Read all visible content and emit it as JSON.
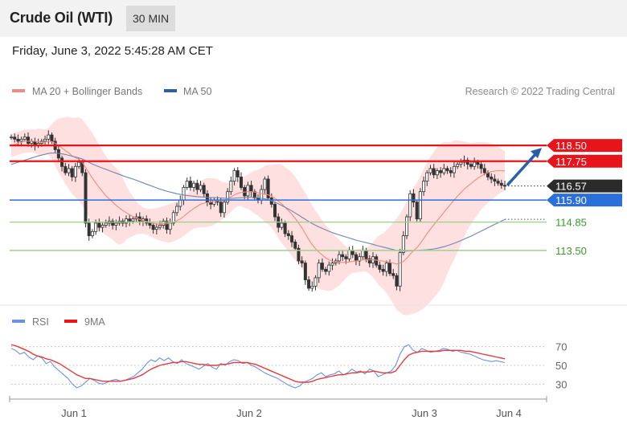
{
  "header": {
    "title": "Crude Oil (WTI)",
    "interval": "30 MIN"
  },
  "timestamp": "Friday, June 3, 2022 5:45:28 AM CET",
  "legend": {
    "ma20_label": "MA 20 + Bollinger Bands",
    "ma50_label": "MA 50",
    "copyright": "Research © 2022 Trading Central",
    "rsi_label": "RSI",
    "rsi_ma_label": "9MA"
  },
  "colors": {
    "resistance": "#e8141c",
    "support_blue": "#2a6fdb",
    "support_green": "#9fd08f",
    "ma20": "#f08b80",
    "ma50": "#6f86b0",
    "bollinger": "#ffd6d6",
    "candle": "#333333",
    "arrow": "#2a5fa8",
    "rsi": "#6a93e0",
    "rsi_ma": "#e83a3a"
  },
  "chart_data": [
    {
      "type": "candlestick",
      "x_ticks": [
        "Jun 1",
        "Jun 2",
        "Jun 3",
        "Jun 4"
      ],
      "levels": [
        {
          "name": "resistance",
          "value": 118.5,
          "label": "118.50"
        },
        {
          "name": "resistance",
          "value": 117.75,
          "label": "117.75"
        },
        {
          "name": "pivot",
          "value": 115.9,
          "label": "115.90"
        },
        {
          "name": "support",
          "value": 114.85,
          "label": "114.85"
        },
        {
          "name": "support",
          "value": 113.5,
          "label": "113.50"
        }
      ],
      "last_price": {
        "value": 116.57,
        "label": "116.57"
      },
      "ylim": [
        111.2,
        119.5
      ],
      "close": [
        118.9,
        118.8,
        118.7,
        118.8,
        118.9,
        118.6,
        118.7,
        118.5,
        118.6,
        118.7,
        118.8,
        119.0,
        118.7,
        118.3,
        117.9,
        117.5,
        117.2,
        117.4,
        117.0,
        117.5,
        117.7,
        117.2,
        114.8,
        114.2,
        114.4,
        114.8,
        114.6,
        114.7,
        114.8,
        114.9,
        114.7,
        114.8,
        114.9,
        114.8,
        115.0,
        114.9,
        115.0,
        115.1,
        114.9,
        115.0,
        114.8,
        114.7,
        114.5,
        114.6,
        114.7,
        114.9,
        114.5,
        114.8,
        115.3,
        115.6,
        115.9,
        116.5,
        116.8,
        116.5,
        116.7,
        116.4,
        116.6,
        116.2,
        115.8,
        115.7,
        115.9,
        115.8,
        115.3,
        115.8,
        116.3,
        116.8,
        117.3,
        117.0,
        116.5,
        116.1,
        116.6,
        116.3,
        116.0,
        115.9,
        116.4,
        116.9,
        116.0,
        115.7,
        115.1,
        114.6,
        114.8,
        114.3,
        114.2,
        113.9,
        113.6,
        113.0,
        112.9,
        112.1,
        111.7,
        111.8,
        112.2,
        112.9,
        112.6,
        112.5,
        112.8,
        112.9,
        113.0,
        113.3,
        113.2,
        113.1,
        113.5,
        113.3,
        113.0,
        113.2,
        113.5,
        113.1,
        112.9,
        113.2,
        112.8,
        112.6,
        112.5,
        112.9,
        112.4,
        112.3,
        111.8,
        113.4,
        114.2,
        115.1,
        116.2,
        115.8,
        115.0,
        116.3,
        116.8,
        117.2,
        117.4,
        117.1,
        117.3,
        117.2,
        117.4,
        117.3,
        117.2,
        117.5,
        117.6,
        117.7,
        117.8,
        117.6,
        117.5,
        117.7,
        117.6,
        117.4,
        117.2,
        117.0,
        116.9,
        116.8,
        116.7,
        116.6,
        116.57
      ],
      "ma20": [
        118.5,
        118.55,
        118.6,
        118.65,
        118.7,
        118.7,
        118.72,
        118.7,
        118.68,
        118.66,
        118.65,
        118.7,
        118.68,
        118.6,
        118.5,
        118.38,
        118.25,
        118.15,
        118.0,
        117.92,
        117.85,
        117.7,
        117.45,
        117.2,
        116.95,
        116.72,
        116.5,
        116.3,
        116.1,
        115.95,
        115.8,
        115.65,
        115.52,
        115.4,
        115.3,
        115.2,
        115.12,
        115.05,
        114.98,
        114.92,
        114.87,
        114.83,
        114.79,
        114.77,
        114.76,
        114.77,
        114.77,
        114.8,
        114.85,
        114.92,
        115.0,
        115.12,
        115.26,
        115.38,
        115.5,
        115.6,
        115.7,
        115.75,
        115.78,
        115.8,
        115.83,
        115.86,
        115.86,
        115.9,
        115.96,
        116.05,
        116.15,
        116.22,
        116.26,
        116.28,
        116.3,
        116.3,
        116.28,
        116.24,
        116.22,
        116.2,
        116.15,
        116.08,
        115.98,
        115.85,
        115.72,
        115.56,
        115.4,
        115.22,
        115.02,
        114.8,
        114.57,
        114.3,
        114.02,
        113.78,
        113.58,
        113.42,
        113.28,
        113.15,
        113.05,
        112.98,
        112.94,
        112.93,
        112.93,
        112.93,
        112.95,
        112.98,
        113.0,
        113.02,
        113.05,
        113.06,
        113.05,
        113.06,
        113.04,
        113.02,
        112.98,
        112.97,
        112.93,
        112.9,
        112.85,
        112.9,
        112.98,
        113.12,
        113.32,
        113.5,
        113.63,
        113.84,
        114.06,
        114.3,
        114.52,
        114.72,
        114.92,
        115.12,
        115.32,
        115.52,
        115.7,
        115.9,
        116.08,
        116.25,
        116.42,
        116.56,
        116.68,
        116.82,
        116.94,
        117.05,
        117.14,
        117.2,
        117.25,
        117.28,
        117.3,
        117.3,
        117.28
      ],
      "ma50": [
        117.6,
        117.65,
        117.7,
        117.75,
        117.8,
        117.85,
        117.9,
        117.95,
        118.0,
        118.04,
        118.08,
        118.12,
        118.14,
        118.14,
        118.12,
        118.1,
        118.07,
        118.03,
        117.99,
        117.95,
        117.91,
        117.86,
        117.78,
        117.7,
        117.62,
        117.55,
        117.48,
        117.42,
        117.36,
        117.3,
        117.24,
        117.18,
        117.12,
        117.06,
        117.0,
        116.95,
        116.9,
        116.84,
        116.78,
        116.72,
        116.66,
        116.6,
        116.54,
        116.48,
        116.42,
        116.37,
        116.32,
        116.28,
        116.24,
        116.2,
        116.17,
        116.14,
        116.12,
        116.1,
        116.08,
        116.06,
        116.05,
        116.04,
        116.03,
        116.02,
        116.02,
        116.01,
        116.0,
        115.99,
        115.98,
        115.98,
        115.99,
        116.0,
        116.01,
        116.02,
        116.03,
        116.03,
        116.02,
        116.0,
        115.98,
        115.96,
        115.92,
        115.86,
        115.8,
        115.72,
        115.64,
        115.56,
        115.47,
        115.38,
        115.28,
        115.18,
        115.08,
        114.98,
        114.88,
        114.78,
        114.7,
        114.62,
        114.55,
        114.48,
        114.41,
        114.35,
        114.29,
        114.24,
        114.19,
        114.14,
        114.09,
        114.04,
        113.99,
        113.95,
        113.91,
        113.87,
        113.83,
        113.79,
        113.74,
        113.7,
        113.66,
        113.62,
        113.58,
        113.54,
        113.5,
        113.48,
        113.47,
        113.47,
        113.48,
        113.49,
        113.5,
        113.51,
        113.52,
        113.53,
        113.55,
        113.57,
        113.6,
        113.64,
        113.68,
        113.73,
        113.78,
        113.84,
        113.9,
        113.97,
        114.04,
        114.11,
        114.18,
        114.26,
        114.34,
        114.42,
        114.5,
        114.58,
        114.66,
        114.74,
        114.82,
        114.9,
        114.98
      ]
    },
    {
      "type": "line",
      "series_names": [
        "RSI",
        "9MA"
      ],
      "y_ticks": [
        70,
        50,
        30
      ],
      "ylim": [
        20,
        80
      ],
      "rsi": [
        68,
        66,
        62,
        64,
        59,
        56,
        60,
        58,
        52,
        54,
        48,
        44,
        40,
        36,
        30,
        26,
        28,
        32,
        36,
        34,
        31,
        30,
        32,
        34,
        35,
        33,
        34,
        36,
        38,
        42,
        46,
        52,
        56,
        54,
        58,
        55,
        58,
        54,
        52,
        56,
        52,
        50,
        48,
        46,
        49,
        52,
        48,
        46,
        52,
        50,
        54,
        56,
        55,
        52,
        53,
        50,
        48,
        45,
        42,
        40,
        38,
        36,
        33,
        30,
        28,
        26,
        28,
        32,
        34,
        36,
        40,
        42,
        38,
        40,
        41,
        44,
        40,
        42,
        46,
        43,
        44,
        41,
        46,
        44,
        38,
        40,
        42,
        44,
        50,
        62,
        70,
        72,
        66,
        64,
        68,
        66,
        64,
        65,
        66,
        68,
        67,
        65,
        66,
        64,
        63,
        62,
        60,
        58,
        56,
        55,
        54,
        55,
        54,
        53
      ],
      "rsi_ma": [
        72,
        71,
        69,
        67,
        65,
        62,
        60,
        59,
        57,
        56,
        54,
        52,
        49,
        46,
        43,
        40,
        38,
        36,
        36,
        35,
        34,
        33,
        33,
        33,
        33,
        33,
        34,
        35,
        36,
        38,
        40,
        43,
        46,
        48,
        50,
        51,
        52,
        53,
        53,
        54,
        54,
        53,
        52,
        51,
        51,
        50,
        50,
        50,
        51,
        51,
        52,
        53,
        53,
        53,
        53,
        52,
        51,
        49,
        47,
        45,
        43,
        41,
        39,
        37,
        35,
        33,
        32,
        32,
        32,
        33,
        35,
        36,
        37,
        38,
        39,
        40,
        40,
        41,
        42,
        42,
        43,
        43,
        43,
        44,
        43,
        42,
        42,
        42,
        44,
        50,
        56,
        61,
        63,
        64,
        65,
        65,
        65,
        65,
        65,
        66,
        66,
        66,
        66,
        66,
        65,
        65,
        64,
        63,
        62,
        61,
        60,
        59,
        58,
        57
      ]
    }
  ]
}
